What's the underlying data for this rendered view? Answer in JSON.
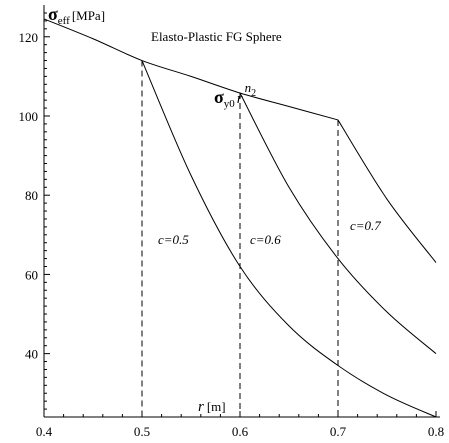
{
  "chart_data": {
    "type": "line",
    "title": "Elasto-Plastic FG Sphere",
    "ylabel_symbol": "σ",
    "ylabel_sub": "eff",
    "ylabel_unit": "[MPa]",
    "xlabel_symbol": "r",
    "xlabel_unit": "[m]",
    "xlim": [
      0.4,
      0.8
    ],
    "ylim": [
      24,
      126
    ],
    "x_ticks": [
      "0.4",
      "0.5",
      "0.6",
      "0.7",
      "0.8"
    ],
    "y_ticks": [
      "40",
      "60",
      "80",
      "100",
      "120"
    ],
    "yield_label": {
      "sigma": "σ",
      "sub": "y0",
      "r": "r",
      "exp": "n",
      "exp_sub": "2"
    },
    "series": [
      {
        "style": "solid",
        "x": [
          0.4,
          0.45,
          0.5,
          0.55,
          0.6,
          0.65,
          0.7
        ],
        "y": [
          124.5,
          119.5,
          114,
          110,
          105.8,
          102.4,
          99
        ]
      },
      {
        "name": "c=0.5",
        "style": "solid",
        "x": [
          0.5,
          0.55,
          0.6,
          0.65,
          0.7,
          0.75,
          0.8
        ],
        "y": [
          114,
          85,
          62,
          47,
          37,
          29.5,
          24
        ]
      },
      {
        "name": "c=0.6",
        "style": "solid",
        "x": [
          0.6,
          0.65,
          0.7,
          0.75,
          0.8
        ],
        "y": [
          105.8,
          82,
          64,
          50.5,
          40
        ]
      },
      {
        "name": "c=0.7",
        "style": "solid",
        "x": [
          0.7,
          0.75,
          0.8
        ],
        "y": [
          99,
          79,
          63
        ]
      }
    ],
    "dashed_verticals": [
      {
        "x": 0.5,
        "y_top": 114
      },
      {
        "x": 0.6,
        "y_top": 105.8
      },
      {
        "x": 0.7,
        "y_top": 99
      }
    ],
    "grid": false
  }
}
